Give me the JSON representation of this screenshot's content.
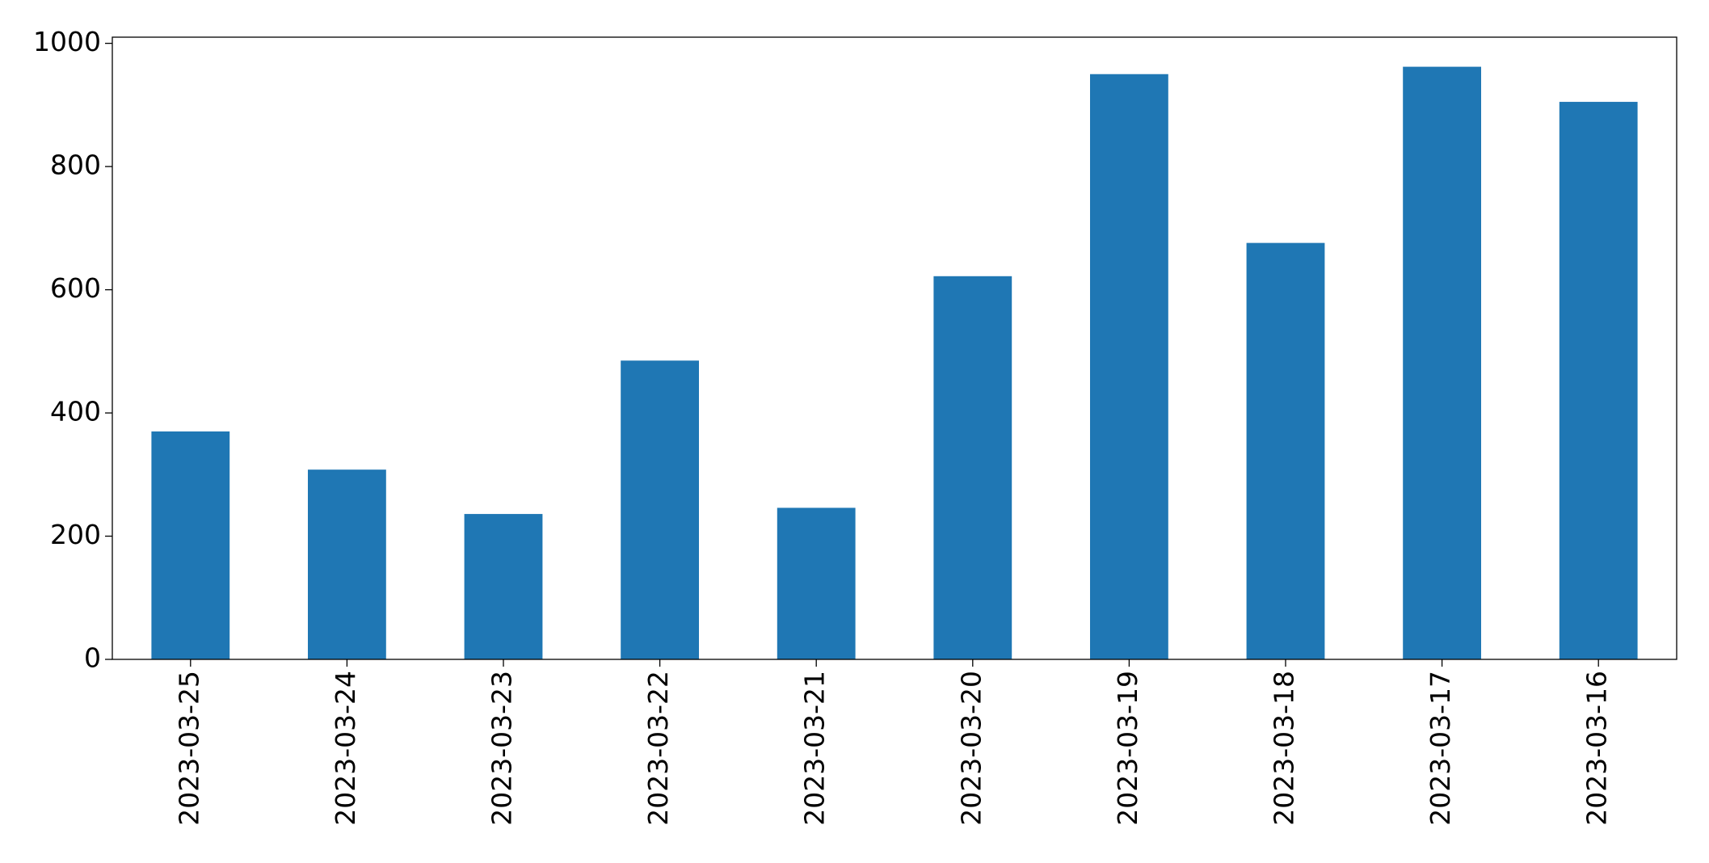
{
  "chart_data": {
    "type": "bar",
    "categories": [
      "2023-03-25",
      "2023-03-24",
      "2023-03-23",
      "2023-03-22",
      "2023-03-21",
      "2023-03-20",
      "2023-03-19",
      "2023-03-18",
      "2023-03-17",
      "2023-03-16"
    ],
    "values": [
      370,
      308,
      236,
      485,
      246,
      622,
      950,
      676,
      962,
      905
    ],
    "color": "#1f77b4",
    "ylim": [
      0,
      1010
    ],
    "yticks": [
      0,
      200,
      400,
      600,
      800,
      1000
    ],
    "grid": false
  }
}
